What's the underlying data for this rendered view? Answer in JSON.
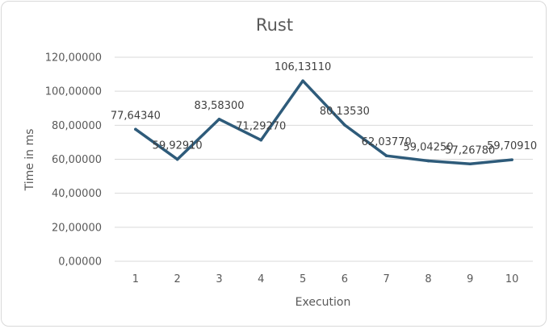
{
  "chart_data": {
    "type": "line",
    "title": "Rust",
    "xlabel": "Execution",
    "ylabel": "Time in ms",
    "categories": [
      "1",
      "2",
      "3",
      "4",
      "5",
      "6",
      "7",
      "8",
      "9",
      "10"
    ],
    "series": [
      {
        "values": [
          77.6434,
          59.9291,
          83.583,
          71.2927,
          106.1311,
          80.1353,
          62.0377,
          59.0425,
          57.2678,
          59.7091
        ],
        "labels": [
          "77,64340",
          "59,92910",
          "83,58300",
          "71,29270",
          "106,13110",
          "80,13530",
          "62,03770",
          "59,04250",
          "57,26780",
          "59,70910"
        ],
        "color": "#2e5b7a"
      }
    ],
    "ylim": [
      0,
      120
    ],
    "yticks": [
      0,
      20,
      40,
      60,
      80,
      100,
      120
    ],
    "ytick_labels": [
      "0,00000",
      "20,00000",
      "40,00000",
      "60,00000",
      "80,00000",
      "100,00000",
      "120,00000"
    ],
    "grid": true,
    "legend": "none"
  }
}
